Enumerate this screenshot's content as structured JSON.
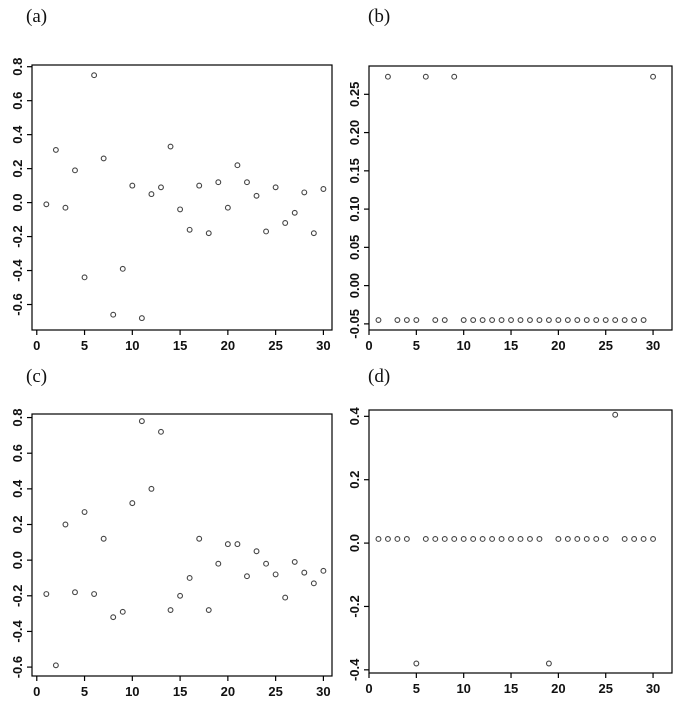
{
  "figure": {
    "background": "#ffffff",
    "text_color": "#111111",
    "marker_color": "#454545"
  },
  "chart_data": [
    {
      "type": "scatter",
      "panel_label": "(a)",
      "marker": "open-circle",
      "grid": false,
      "legend": "none",
      "x": [
        1,
        2,
        3,
        4,
        5,
        6,
        7,
        8,
        9,
        10,
        11,
        12,
        13,
        14,
        15,
        16,
        17,
        18,
        19,
        20,
        21,
        22,
        23,
        24,
        25,
        26,
        27,
        28,
        29,
        30
      ],
      "y": [
        -0.01,
        0.31,
        -0.03,
        0.19,
        -0.44,
        0.75,
        0.26,
        -0.66,
        -0.39,
        0.1,
        -0.68,
        0.05,
        0.09,
        0.33,
        -0.04,
        -0.16,
        0.1,
        -0.18,
        0.12,
        -0.03,
        0.22,
        0.12,
        0.04,
        -0.17,
        0.09,
        -0.12,
        -0.06,
        0.06,
        -0.18,
        0.08
      ],
      "xlim": [
        -0.5,
        30.9
      ],
      "ylim": [
        -0.75,
        0.81
      ],
      "xticks": [
        0,
        5,
        10,
        15,
        20,
        25,
        30
      ],
      "xtick_labels": [
        "0",
        "5",
        "10",
        "15",
        "20",
        "25",
        "30"
      ],
      "yticks": [
        -0.6,
        -0.4,
        -0.2,
        0.0,
        0.2,
        0.4,
        0.6,
        0.8
      ],
      "ytick_labels": [
        "-0.6",
        "-0.4",
        "-0.2",
        "0.0",
        "0.2",
        "0.4",
        "0.6",
        "0.8"
      ]
    },
    {
      "type": "scatter",
      "panel_label": "(b)",
      "marker": "open-circle",
      "grid": false,
      "legend": "none",
      "x": [
        1,
        2,
        3,
        4,
        5,
        6,
        7,
        8,
        9,
        10,
        11,
        12,
        13,
        14,
        15,
        16,
        17,
        18,
        19,
        20,
        21,
        22,
        23,
        24,
        25,
        26,
        27,
        28,
        29,
        30
      ],
      "y": [
        -0.045,
        0.273,
        -0.045,
        -0.045,
        -0.045,
        0.273,
        -0.045,
        -0.045,
        0.273,
        -0.045,
        -0.045,
        -0.045,
        -0.045,
        -0.045,
        -0.045,
        -0.045,
        -0.045,
        -0.045,
        -0.045,
        -0.045,
        -0.045,
        -0.045,
        -0.045,
        -0.045,
        -0.045,
        -0.045,
        -0.045,
        -0.045,
        -0.045,
        0.273
      ],
      "xlim": [
        0,
        32
      ],
      "ylim": [
        -0.058,
        0.287
      ],
      "xticks": [
        0,
        5,
        10,
        15,
        20,
        25,
        30
      ],
      "xtick_labels": [
        "0",
        "5",
        "10",
        "15",
        "20",
        "25",
        "30"
      ],
      "yticks": [
        -0.05,
        0.0,
        0.05,
        0.1,
        0.15,
        0.2,
        0.25
      ],
      "ytick_labels": [
        "-0.05",
        "0.00",
        "0.05",
        "0.10",
        "0.15",
        "0.20",
        "0.25"
      ]
    },
    {
      "type": "scatter",
      "panel_label": "(c)",
      "marker": "open-circle",
      "grid": false,
      "legend": "none",
      "x": [
        1,
        2,
        3,
        4,
        5,
        6,
        7,
        8,
        9,
        10,
        11,
        12,
        13,
        14,
        15,
        16,
        17,
        18,
        19,
        20,
        21,
        22,
        23,
        24,
        25,
        26,
        27,
        28,
        29,
        30
      ],
      "y": [
        -0.19,
        -0.59,
        0.2,
        -0.18,
        0.27,
        -0.19,
        0.12,
        -0.32,
        -0.29,
        0.32,
        0.78,
        0.4,
        0.72,
        -0.28,
        -0.2,
        -0.1,
        0.12,
        -0.28,
        -0.02,
        0.09,
        0.09,
        -0.09,
        0.05,
        -0.02,
        -0.08,
        -0.21,
        -0.01,
        -0.07,
        -0.13,
        -0.06
      ],
      "xlim": [
        -0.5,
        30.9
      ],
      "ylim": [
        -0.65,
        0.82
      ],
      "xticks": [
        0,
        5,
        10,
        15,
        20,
        25,
        30
      ],
      "xtick_labels": [
        "0",
        "5",
        "10",
        "15",
        "20",
        "25",
        "30"
      ],
      "yticks": [
        -0.6,
        -0.4,
        -0.2,
        0.0,
        0.2,
        0.4,
        0.6,
        0.8
      ],
      "ytick_labels": [
        "-0.6",
        "-0.4",
        "-0.2",
        "0.0",
        "0.2",
        "0.4",
        "0.6",
        "0.8"
      ]
    },
    {
      "type": "scatter",
      "panel_label": "(d)",
      "marker": "open-circle",
      "grid": false,
      "legend": "none",
      "x": [
        1,
        2,
        3,
        4,
        5,
        6,
        7,
        8,
        9,
        10,
        11,
        12,
        13,
        14,
        15,
        16,
        17,
        18,
        19,
        20,
        21,
        22,
        23,
        24,
        25,
        26,
        27,
        28,
        29,
        30
      ],
      "y": [
        0.013,
        0.013,
        0.013,
        0.013,
        -0.38,
        0.013,
        0.013,
        0.013,
        0.013,
        0.013,
        0.013,
        0.013,
        0.013,
        0.013,
        0.013,
        0.013,
        0.013,
        0.013,
        -0.38,
        0.013,
        0.013,
        0.013,
        0.013,
        0.013,
        0.013,
        0.405,
        0.013,
        0.013,
        0.013,
        0.013
      ],
      "xlim": [
        0,
        32
      ],
      "ylim": [
        -0.41,
        0.42
      ],
      "xticks": [
        0,
        5,
        10,
        15,
        20,
        25,
        30
      ],
      "xtick_labels": [
        "0",
        "5",
        "10",
        "15",
        "20",
        "25",
        "30"
      ],
      "yticks": [
        -0.4,
        -0.2,
        0.0,
        0.2,
        0.4
      ],
      "ytick_labels": [
        "-0.4",
        "-0.2",
        "0.0",
        "0.2",
        "0.4"
      ]
    }
  ]
}
